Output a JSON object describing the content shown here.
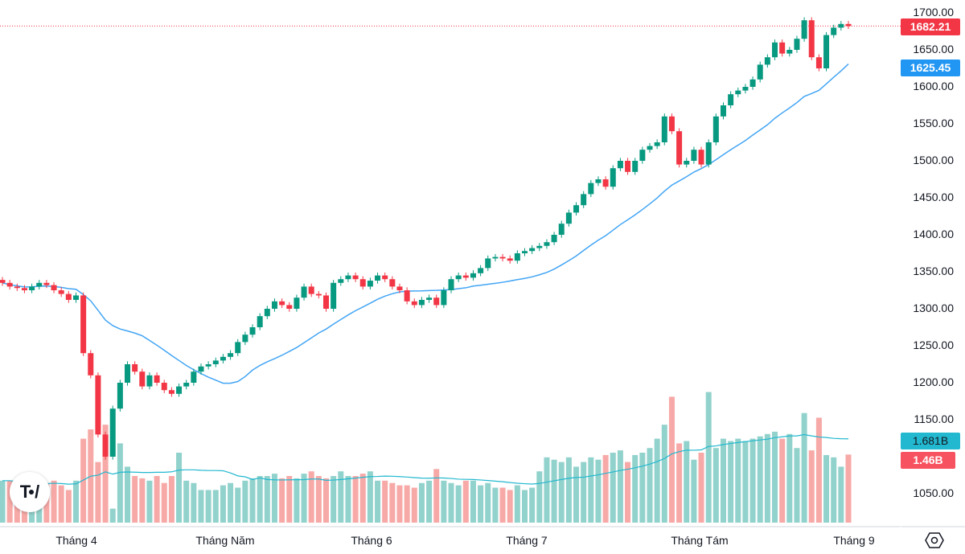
{
  "chart_data": {
    "type": "candlestick",
    "y_ticks": [
      "1700.00",
      "1650.00",
      "1600.00",
      "1550.00",
      "1500.00",
      "1450.00",
      "1400.00",
      "1350.00",
      "1300.00",
      "1250.00",
      "1200.00",
      "1150.00",
      "1050.00"
    ],
    "ylim": [
      1030,
      1710
    ],
    "x_labels": [
      "Tháng 4",
      "Tháng Năm",
      "Tháng 6",
      "Tháng 7",
      "Tháng Tám",
      "Tháng 9"
    ],
    "closes": [
      1335,
      1330,
      1328,
      1325,
      1330,
      1335,
      1332,
      1325,
      1320,
      1312,
      1318,
      1240,
      1210,
      1130,
      1100,
      1165,
      1200,
      1225,
      1215,
      1195,
      1210,
      1200,
      1190,
      1185,
      1195,
      1200,
      1215,
      1222,
      1225,
      1230,
      1235,
      1240,
      1255,
      1265,
      1275,
      1290,
      1300,
      1310,
      1305,
      1300,
      1315,
      1330,
      1320,
      1318,
      1300,
      1335,
      1340,
      1345,
      1340,
      1330,
      1338,
      1345,
      1340,
      1330,
      1325,
      1310,
      1305,
      1312,
      1315,
      1305,
      1325,
      1340,
      1345,
      1342,
      1348,
      1355,
      1368,
      1370,
      1368,
      1365,
      1375,
      1378,
      1382,
      1385,
      1390,
      1400,
      1415,
      1430,
      1440,
      1455,
      1470,
      1475,
      1465,
      1490,
      1500,
      1485,
      1500,
      1515,
      1520,
      1525,
      1560,
      1540,
      1495,
      1500,
      1515,
      1495,
      1525,
      1560,
      1575,
      1590,
      1595,
      1600,
      1610,
      1630,
      1640,
      1660,
      1645,
      1650,
      1665,
      1690,
      1640,
      1625,
      1670,
      1680,
      1685,
      1682.21
    ],
    "volumes_b": [
      0.9,
      0.9,
      0.85,
      0.8,
      0.75,
      0.8,
      0.85,
      0.9,
      0.8,
      0.7,
      0.9,
      1.8,
      2.0,
      1.3,
      2.1,
      0.3,
      1.7,
      1.2,
      1.0,
      0.95,
      0.9,
      1.0,
      0.85,
      1.0,
      1.5,
      0.9,
      0.85,
      0.7,
      0.7,
      0.7,
      0.8,
      0.85,
      0.75,
      0.9,
      0.95,
      1.0,
      1.0,
      1.05,
      0.95,
      1.0,
      0.95,
      1.05,
      1.1,
      1.0,
      0.95,
      1.0,
      1.1,
      1.0,
      1.0,
      1.05,
      1.1,
      0.9,
      0.9,
      0.85,
      0.8,
      0.8,
      0.75,
      0.85,
      0.9,
      1.15,
      0.9,
      0.85,
      0.8,
      0.9,
      0.9,
      0.8,
      0.85,
      0.75,
      0.75,
      0.7,
      0.8,
      0.7,
      0.75,
      1.1,
      1.4,
      1.35,
      1.3,
      1.4,
      1.2,
      1.3,
      1.4,
      1.35,
      1.45,
      1.5,
      1.55,
      1.3,
      1.45,
      1.5,
      1.6,
      1.8,
      2.1,
      2.7,
      1.7,
      1.75,
      1.35,
      1.5,
      2.8,
      1.6,
      1.8,
      1.75,
      1.8,
      1.75,
      1.8,
      1.85,
      1.9,
      1.95,
      1.8,
      1.9,
      1.6,
      2.35,
      1.55,
      2.25,
      1.45,
      1.4,
      1.2,
      1.46
    ],
    "ma_label": "1625.45",
    "last_price": "1682.21",
    "volume_ma_label": "1.681B",
    "volume_label": "1.46B"
  },
  "colors": {
    "up": "#089981",
    "down": "#f23645",
    "vol_up": "#92d2cc",
    "vol_down": "#f7a9a7",
    "ma": "#42a5f5",
    "vol_ma": "#22b8cf"
  },
  "logo": "TV"
}
